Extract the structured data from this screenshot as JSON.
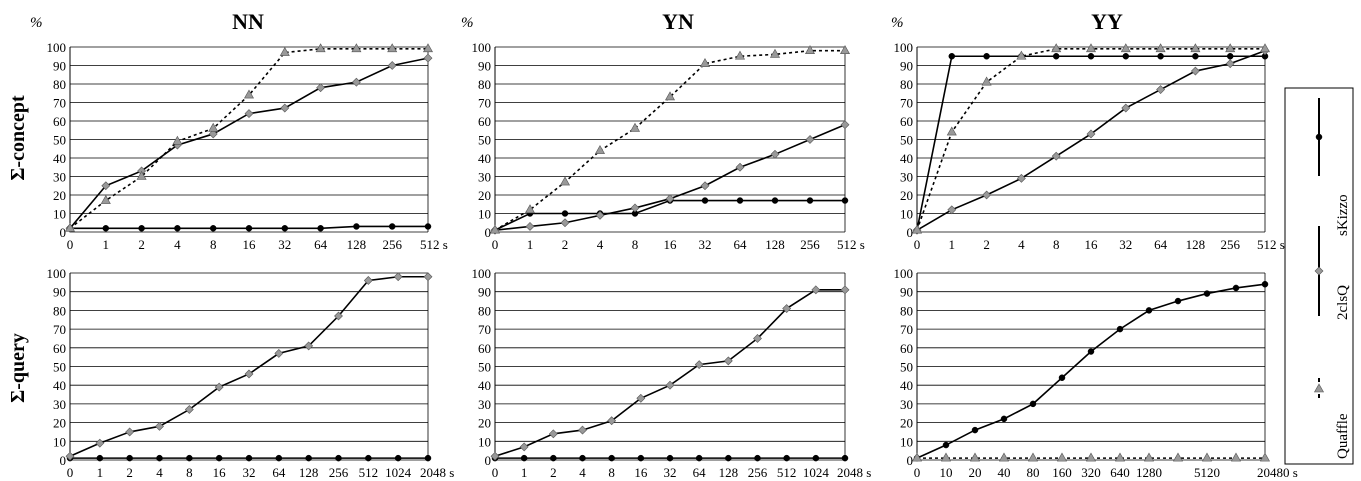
{
  "row_labels": [
    "Σ-concept",
    "Σ-query"
  ],
  "column_titles": [
    "NN",
    "YN",
    "YY"
  ],
  "y_unit": "%",
  "x_unit": "s",
  "legend": [
    {
      "name": "sKizzo",
      "color": "#000000",
      "marker": "circle",
      "line": "solid"
    },
    {
      "name": "2clsQ",
      "color": "#999999",
      "marker": "diamond",
      "line": "solid"
    },
    {
      "name": "Quaffle",
      "color": "#999999",
      "marker": "triangle",
      "line": "dotted"
    }
  ],
  "chart_data": [
    {
      "type": "line",
      "title": "NN",
      "row": "Σ-concept",
      "categories": [
        "0",
        "1",
        "2",
        "4",
        "8",
        "16",
        "32",
        "64",
        "128",
        "256",
        "512 s"
      ],
      "ylim": [
        0,
        100
      ],
      "yticks": [
        0,
        10,
        20,
        30,
        40,
        50,
        60,
        70,
        80,
        90,
        100
      ],
      "grid": "horizontal",
      "series": [
        {
          "name": "sKizzo",
          "values": [
            2,
            2,
            2,
            2,
            2,
            2,
            2,
            2,
            3,
            3,
            3
          ]
        },
        {
          "name": "2clsQ",
          "values": [
            2,
            25,
            33,
            47,
            53,
            64,
            67,
            78,
            81,
            90,
            94
          ]
        },
        {
          "name": "Quaffle",
          "values": [
            2,
            17,
            30,
            49,
            56,
            74,
            97,
            99,
            99,
            99,
            99
          ]
        }
      ]
    },
    {
      "type": "line",
      "title": "YN",
      "row": "Σ-concept",
      "categories": [
        "0",
        "1",
        "2",
        "4",
        "8",
        "16",
        "32",
        "64",
        "128",
        "256",
        "512 s"
      ],
      "ylim": [
        0,
        100
      ],
      "yticks": [
        0,
        10,
        20,
        30,
        40,
        50,
        60,
        70,
        80,
        90,
        100
      ],
      "grid": "horizontal",
      "series": [
        {
          "name": "sKizzo",
          "values": [
            1,
            10,
            10,
            10,
            10,
            17,
            17,
            17,
            17,
            17,
            17
          ]
        },
        {
          "name": "2clsQ",
          "values": [
            1,
            3,
            5,
            9,
            13,
            18,
            25,
            35,
            42,
            50,
            58
          ]
        },
        {
          "name": "Quaffle",
          "values": [
            1,
            12,
            27,
            44,
            56,
            73,
            91,
            95,
            96,
            98,
            98
          ]
        }
      ]
    },
    {
      "type": "line",
      "title": "YY",
      "row": "Σ-concept",
      "categories": [
        "0",
        "1",
        "2",
        "4",
        "8",
        "16",
        "32",
        "64",
        "128",
        "256",
        "512 s"
      ],
      "ylim": [
        0,
        100
      ],
      "yticks": [
        0,
        10,
        20,
        30,
        40,
        50,
        60,
        70,
        80,
        90,
        100
      ],
      "grid": "horizontal",
      "series": [
        {
          "name": "sKizzo",
          "values": [
            1,
            95,
            95,
            95,
            95,
            95,
            95,
            95,
            95,
            95,
            95
          ]
        },
        {
          "name": "2clsQ",
          "values": [
            1,
            12,
            20,
            29,
            41,
            53,
            67,
            77,
            87,
            91,
            98
          ]
        },
        {
          "name": "Quaffle",
          "values": [
            1,
            54,
            81,
            95,
            99,
            99,
            99,
            99,
            99,
            99,
            99
          ]
        }
      ]
    },
    {
      "type": "line",
      "title": "",
      "row": "Σ-query",
      "categories": [
        "0",
        "1",
        "2",
        "4",
        "8",
        "16",
        "32",
        "64",
        "128",
        "256",
        "512",
        "1024",
        "2048 s"
      ],
      "ylim": [
        0,
        100
      ],
      "yticks": [
        0,
        10,
        20,
        30,
        40,
        50,
        60,
        70,
        80,
        90,
        100
      ],
      "grid": "horizontal",
      "series": [
        {
          "name": "sKizzo",
          "values": [
            1,
            1,
            1,
            1,
            1,
            1,
            1,
            1,
            1,
            1,
            1,
            1,
            1
          ]
        },
        {
          "name": "2clsQ",
          "values": [
            2,
            9,
            15,
            18,
            27,
            39,
            46,
            57,
            61,
            77,
            96,
            98,
            98
          ]
        }
      ]
    },
    {
      "type": "line",
      "title": "",
      "row": "Σ-query",
      "categories": [
        "0",
        "1",
        "2",
        "4",
        "8",
        "16",
        "32",
        "64",
        "128",
        "256",
        "512",
        "1024",
        "2048 s"
      ],
      "ylim": [
        0,
        100
      ],
      "yticks": [
        0,
        10,
        20,
        30,
        40,
        50,
        60,
        70,
        80,
        90,
        100
      ],
      "grid": "horizontal",
      "series": [
        {
          "name": "sKizzo",
          "values": [
            1,
            1,
            1,
            1,
            1,
            1,
            1,
            1,
            1,
            1,
            1,
            1,
            1
          ]
        },
        {
          "name": "2clsQ",
          "values": [
            2,
            7,
            14,
            16,
            21,
            33,
            40,
            51,
            53,
            65,
            81,
            91,
            91
          ]
        }
      ]
    },
    {
      "type": "line",
      "title": "",
      "row": "Σ-query",
      "categories": [
        "0",
        "10",
        "20",
        "40",
        "80",
        "160",
        "320",
        "640",
        "1280",
        "",
        "5120",
        "",
        "20480 s"
      ],
      "ylim": [
        0,
        100
      ],
      "yticks": [
        0,
        10,
        20,
        30,
        40,
        50,
        60,
        70,
        80,
        90,
        100
      ],
      "grid": "horizontal",
      "series": [
        {
          "name": "sKizzo",
          "values": [
            1,
            8,
            16,
            22,
            30,
            44,
            58,
            70,
            80,
            85,
            89,
            92,
            94
          ]
        },
        {
          "name": "Quaffle",
          "values": [
            1,
            1,
            1,
            1,
            1,
            1,
            1,
            1,
            1,
            1,
            1,
            1,
            1
          ]
        }
      ]
    }
  ]
}
